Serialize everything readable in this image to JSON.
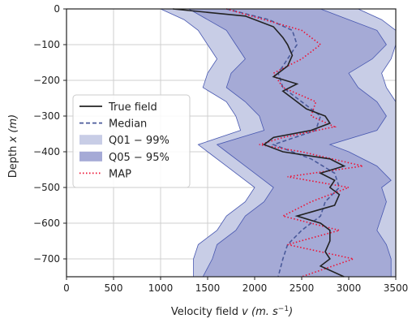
{
  "chart_data": {
    "type": "area",
    "xlabel": "Velocity field",
    "xlabel_symbol": "v",
    "xlabel_unit": "(m. s",
    "xlabel_unit_sup": "−1",
    "xlabel_unit_close": ")",
    "ylabel": "Depth",
    "ylabel_symbol": "x",
    "ylabel_unit": "(m)",
    "xlim": [
      0,
      3500
    ],
    "ylim": [
      -750,
      0
    ],
    "x_ticks": [
      0,
      500,
      1000,
      1500,
      2000,
      2500,
      3000,
      3500
    ],
    "x_tick_labels": [
      "0",
      "500",
      "1000",
      "1500",
      "2000",
      "2500",
      "3000",
      "3500"
    ],
    "y_ticks": [
      0,
      -100,
      -200,
      -300,
      -400,
      -500,
      -600,
      -700
    ],
    "y_tick_labels": [
      "0",
      "−100",
      "−200",
      "−300",
      "−400",
      "−500",
      "−600",
      "−700"
    ],
    "grid": true,
    "legend_position": "center-left",
    "colors": {
      "true_field": "#222222",
      "median": "#4a5a9a",
      "q01_99_fill": "#c8cde6",
      "q05_95_fill": "#a5aad6",
      "band_edge": "#4757b0",
      "map": "#ee1133"
    },
    "series": [
      {
        "name": "True field",
        "style": "solid",
        "depth": [
          0,
          -20,
          -50,
          -80,
          -100,
          -130,
          -160,
          -190,
          -210,
          -230,
          -250,
          -280,
          -300,
          -320,
          -340,
          -360,
          -380,
          -400,
          -420,
          -440,
          -460,
          -480,
          -500,
          -520,
          -550,
          -580,
          -600,
          -620,
          -650,
          -680,
          -700,
          -720,
          -750
        ],
        "velocity": [
          1130,
          1900,
          2200,
          2300,
          2350,
          2400,
          2350,
          2200,
          2450,
          2300,
          2400,
          2550,
          2750,
          2800,
          2600,
          2200,
          2100,
          2300,
          2800,
          2950,
          2700,
          2850,
          2800,
          2900,
          2850,
          2450,
          2700,
          2800,
          2800,
          2750,
          2800,
          2700,
          2950
        ]
      },
      {
        "name": "Median",
        "style": "dashed",
        "depth": [
          0,
          -30,
          -60,
          -100,
          -140,
          -180,
          -220,
          -260,
          -300,
          -340,
          -380,
          -420,
          -460,
          -500,
          -540,
          -580,
          -620,
          -660,
          -700,
          -750
        ],
        "velocity": [
          1700,
          2150,
          2400,
          2450,
          2350,
          2250,
          2300,
          2500,
          2700,
          2650,
          2200,
          2600,
          2850,
          2900,
          2750,
          2700,
          2500,
          2350,
          2300,
          2250
        ]
      },
      {
        "name": "MAP",
        "style": "dotted",
        "depth": [
          0,
          -30,
          -60,
          -100,
          -140,
          -180,
          -220,
          -260,
          -300,
          -330,
          -360,
          -380,
          -400,
          -440,
          -470,
          -500,
          -540,
          -580,
          -620,
          -660,
          -700,
          -750
        ],
        "velocity": [
          1700,
          2100,
          2500,
          2700,
          2500,
          2200,
          2300,
          2650,
          2600,
          2850,
          2300,
          2050,
          2500,
          3150,
          2350,
          3000,
          2600,
          2300,
          2900,
          2350,
          3050,
          2500
        ]
      }
    ],
    "bands": [
      {
        "name": "Q01 − 99%",
        "depth": [
          0,
          -30,
          -60,
          -100,
          -140,
          -180,
          -220,
          -260,
          -300,
          -340,
          -380,
          -400,
          -440,
          -480,
          -500,
          -540,
          -580,
          -620,
          -660,
          -700,
          -750
        ],
        "lower": [
          1000,
          1250,
          1400,
          1500,
          1600,
          1500,
          1450,
          1700,
          1800,
          1850,
          1400,
          1500,
          1700,
          1900,
          2000,
          1900,
          1700,
          1600,
          1400,
          1350,
          1350
        ],
        "upper": [
          3100,
          3350,
          3500,
          3500,
          3450,
          3350,
          3400,
          3500,
          3500,
          3500,
          3500,
          3500,
          3500,
          3500,
          3500,
          3500,
          3500,
          3500,
          3500,
          3500,
          3500
        ]
      },
      {
        "name": "Q05 − 95%",
        "depth": [
          0,
          -30,
          -60,
          -100,
          -140,
          -180,
          -220,
          -260,
          -300,
          -340,
          -380,
          -400,
          -440,
          -480,
          -500,
          -540,
          -580,
          -620,
          -660,
          -700,
          -750
        ],
        "lower": [
          1300,
          1500,
          1700,
          1800,
          1900,
          1750,
          1700,
          1900,
          2050,
          2100,
          1600,
          1700,
          1900,
          2100,
          2200,
          2100,
          1900,
          1800,
          1600,
          1550,
          1450
        ],
        "upper": [
          2700,
          3000,
          3300,
          3400,
          3250,
          3000,
          3100,
          3300,
          3400,
          3300,
          2800,
          3000,
          3300,
          3450,
          3350,
          3400,
          3350,
          3300,
          3400,
          3450,
          3450
        ]
      }
    ],
    "legend": [
      {
        "label": "True field",
        "kind": "solid"
      },
      {
        "label": "Median",
        "kind": "dashed"
      },
      {
        "label": "Q01 − 99%",
        "kind": "fill-light"
      },
      {
        "label": "Q05 − 95%",
        "kind": "fill-dark"
      },
      {
        "label": "MAP",
        "kind": "dotted"
      }
    ]
  }
}
